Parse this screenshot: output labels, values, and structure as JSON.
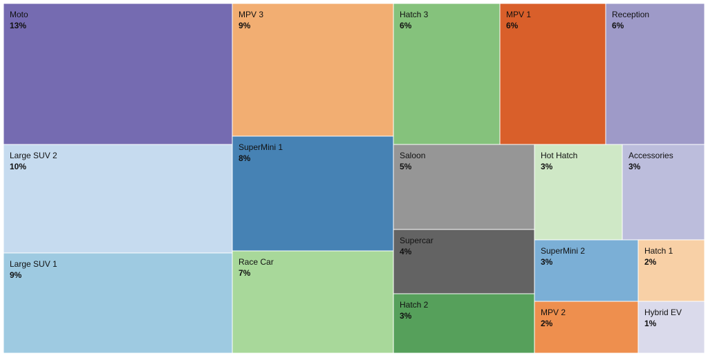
{
  "chart_data": {
    "type": "treemap",
    "title": "",
    "cells": [
      {
        "name": "Moto",
        "percent_label": "13%",
        "value": 13,
        "color": "#756bb1"
      },
      {
        "name": "Large SUV 2",
        "percent_label": "10%",
        "value": 10,
        "color": "#c6dbef"
      },
      {
        "name": "Large SUV 1",
        "percent_label": "9%",
        "value": 9,
        "color": "#9ecae1"
      },
      {
        "name": "MPV 3",
        "percent_label": "9%",
        "value": 9,
        "color": "#f2ae72"
      },
      {
        "name": "SuperMini 1",
        "percent_label": "8%",
        "value": 8,
        "color": "#4682b4"
      },
      {
        "name": "Race Car",
        "percent_label": "7%",
        "value": 7,
        "color": "#a8d89a"
      },
      {
        "name": "Hatch 3",
        "percent_label": "6%",
        "value": 6,
        "color": "#85c27c"
      },
      {
        "name": "MPV 1",
        "percent_label": "6%",
        "value": 6,
        "color": "#d95f2a"
      },
      {
        "name": "Reception",
        "percent_label": "6%",
        "value": 6,
        "color": "#9e9ac8"
      },
      {
        "name": "Saloon",
        "percent_label": "5%",
        "value": 5,
        "color": "#969696"
      },
      {
        "name": "Supercar",
        "percent_label": "4%",
        "value": 4,
        "color": "#636363"
      },
      {
        "name": "Hatch 2",
        "percent_label": "3%",
        "value": 3,
        "color": "#56a05b"
      },
      {
        "name": "Hot Hatch",
        "percent_label": "3%",
        "value": 3,
        "color": "#cfe8c6"
      },
      {
        "name": "Accessories",
        "percent_label": "3%",
        "value": 3,
        "color": "#bcbddc"
      },
      {
        "name": "SuperMini 2",
        "percent_label": "3%",
        "value": 3,
        "color": "#7bafd6"
      },
      {
        "name": "Hatch 1",
        "percent_label": "2%",
        "value": 2,
        "color": "#f8d0a6"
      },
      {
        "name": "MPV 2",
        "percent_label": "2%",
        "value": 2,
        "color": "#ee8f4e"
      },
      {
        "name": "Hybrid EV",
        "percent_label": "1%",
        "value": 1,
        "color": "#dadaeb"
      }
    ]
  }
}
